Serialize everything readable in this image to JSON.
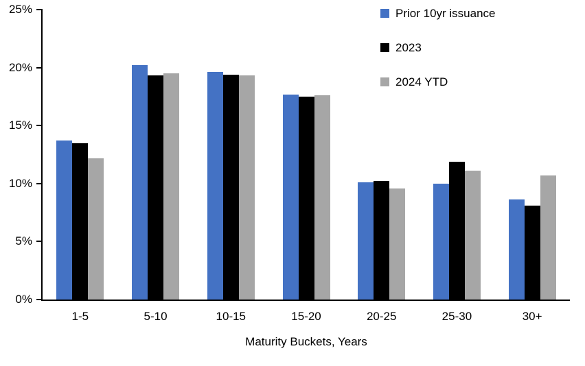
{
  "chart_data": {
    "type": "bar",
    "title": "",
    "xlabel": "Maturity Buckets, Years",
    "ylabel": "",
    "ylim": [
      0,
      25
    ],
    "yticks": [
      0,
      5,
      10,
      15,
      20,
      25
    ],
    "ytick_suffix": "%",
    "grid": false,
    "legend_position": "top-right",
    "background_color": "#ffffff",
    "axis_color": "#000000",
    "categories": [
      "1-5",
      "5-10",
      "10-15",
      "15-20",
      "20-25",
      "25-30",
      "30+"
    ],
    "series": [
      {
        "name": "Prior 10yr issuance",
        "color": "#4472C4",
        "values": [
          13.7,
          20.2,
          19.6,
          17.7,
          10.1,
          10.0,
          8.6
        ]
      },
      {
        "name": "2023",
        "color": "#000000",
        "values": [
          13.5,
          19.3,
          19.4,
          17.5,
          10.2,
          11.9,
          8.1
        ]
      },
      {
        "name": "2024 YTD",
        "color": "#A6A6A6",
        "values": [
          12.2,
          19.5,
          19.3,
          17.6,
          9.6,
          11.1,
          10.7
        ]
      }
    ]
  }
}
